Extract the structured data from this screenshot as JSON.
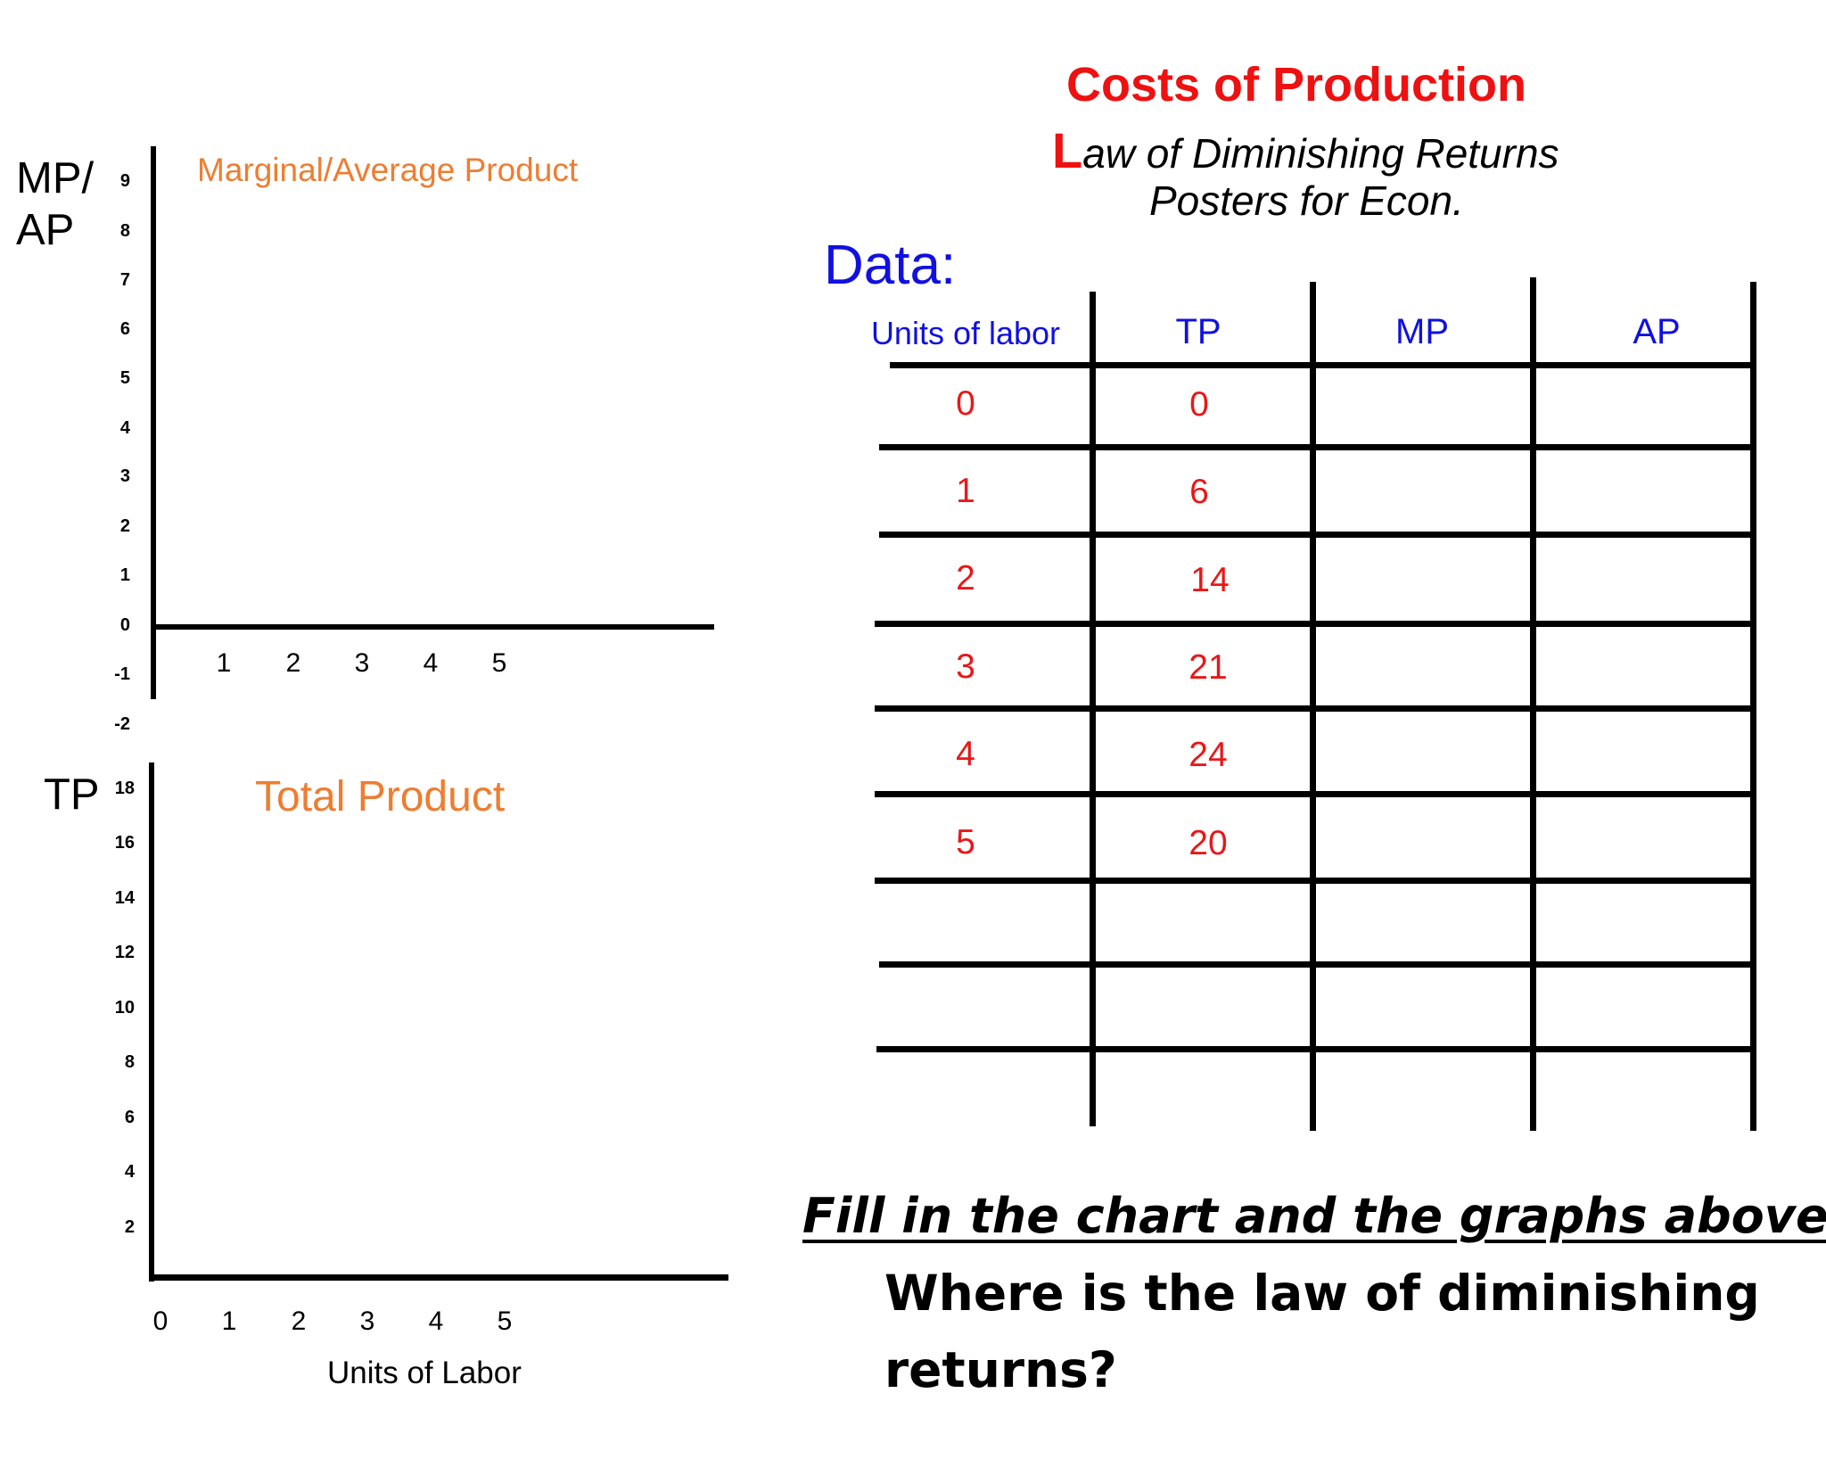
{
  "mp_ap_graph": {
    "y_axis_label_line1": "MP/",
    "y_axis_label_line2": "AP",
    "title": "Marginal/Average Product",
    "y_ticks": [
      "9",
      "8",
      "7",
      "6",
      "5",
      "4",
      "3",
      "2",
      "1",
      "0",
      "-1",
      "-2"
    ],
    "x_ticks": [
      "1",
      "2",
      "3",
      "4",
      "5"
    ]
  },
  "tp_graph": {
    "y_axis_label": "TP",
    "title": "Total Product",
    "y_ticks": [
      "18",
      "16",
      "14",
      "12",
      "10",
      "8",
      "6",
      "4",
      "2"
    ],
    "x_ticks": [
      "0",
      "1",
      "2",
      "3",
      "4",
      "5"
    ],
    "x_axis_label": "Units of Labor"
  },
  "header": {
    "title": "Costs of Production",
    "subtitle_initial": "L",
    "subtitle_rest": "aw of Diminishing Returns",
    "subtitle_line2": "Posters for Econ."
  },
  "table": {
    "label": "Data:",
    "headers": [
      "Units of labor",
      "TP",
      "MP",
      "AP"
    ],
    "rows": [
      {
        "labor": "0",
        "tp": "0"
      },
      {
        "labor": "1",
        "tp": "6"
      },
      {
        "labor": "2",
        "tp": "14"
      },
      {
        "labor": "3",
        "tp": "21"
      },
      {
        "labor": "4",
        "tp": "24"
      },
      {
        "labor": "5",
        "tp": "20"
      }
    ]
  },
  "instructions": {
    "line1": "Fill in the chart and the graphs above.",
    "line2": "Where is the law of diminishing",
    "line3": "returns?"
  },
  "colors": {
    "title_red": "#ee1111",
    "data_red": "#e81818",
    "blue": "#1010e0",
    "orange": "#ee7d31"
  }
}
